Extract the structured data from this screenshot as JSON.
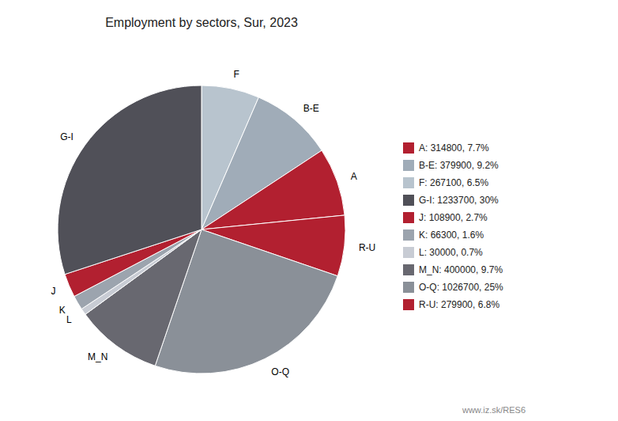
{
  "chart_data": {
    "type": "pie",
    "title": "Employment by sectors, Sur, 2023",
    "categories": [
      "F",
      "B-E",
      "A",
      "R-U",
      "O-Q",
      "M_N",
      "L",
      "K",
      "J",
      "G-I"
    ],
    "values": [
      267100,
      379900,
      314800,
      279900,
      1026700,
      400000,
      30000,
      66300,
      108900,
      1233700
    ],
    "colors": [
      "#b8c4ce",
      "#a0acb8",
      "#b22030",
      "#b22030",
      "#8a9098",
      "#686870",
      "#c8ccd4",
      "#9ca4ae",
      "#b22030",
      "#505058"
    ],
    "legend": "right",
    "legend_labels": [
      "A: 314800, 7.7%",
      "B-E: 379900, 9.2%",
      "F: 267100, 6.5%",
      "G-I: 1233700, 30%",
      "J: 108900, 2.7%",
      "K: 66300, 1.6%",
      "L: 30000, 0.7%",
      "M_N: 400000, 9.7%",
      "O-Q: 1026700, 25%",
      "R-U: 279900, 6.8%"
    ],
    "legend_colors": [
      "#b22030",
      "#a0acb8",
      "#b8c4ce",
      "#505058",
      "#b22030",
      "#9ca4ae",
      "#c8ccd4",
      "#686870",
      "#8a9098",
      "#b22030"
    ],
    "annotations": [
      "www.iz.sk/RES6"
    ]
  }
}
